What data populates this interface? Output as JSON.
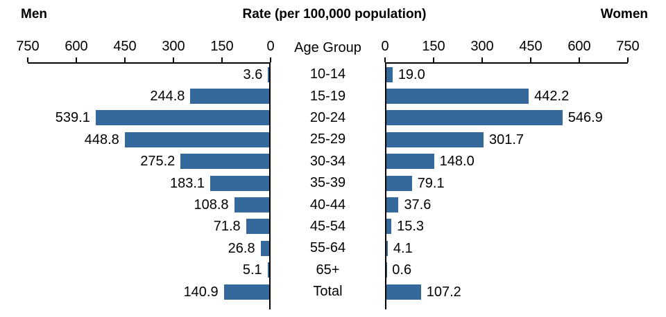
{
  "header": {
    "left": "Men",
    "title": "Rate (per 100,000 population)",
    "right": "Women"
  },
  "center_label": "Age Group",
  "colors": {
    "bar": "#35699C",
    "axis": "#000000",
    "text": "#000000"
  },
  "chart_data": {
    "type": "bar",
    "layout": "horizontal-bilateral-pyramid",
    "title": "Rate (per 100,000 population)",
    "center_axis_label": "Age Group",
    "axis_max": 750,
    "ticks": [
      0,
      150,
      300,
      450,
      600,
      750
    ],
    "grid": false,
    "value_labels": true,
    "value_label_decimals": 1,
    "categories": [
      "10-14",
      "15-19",
      "20-24",
      "25-29",
      "30-34",
      "35-39",
      "40-44",
      "45-54",
      "55-64",
      "65+",
      "Total"
    ],
    "series": [
      {
        "name": "Men",
        "side": "left",
        "values": [
          3.6,
          244.8,
          539.1,
          448.8,
          275.2,
          183.1,
          108.8,
          71.8,
          26.8,
          5.1,
          140.9
        ]
      },
      {
        "name": "Women",
        "side": "right",
        "values": [
          19.0,
          442.2,
          546.9,
          301.7,
          148.0,
          79.1,
          37.6,
          15.3,
          4.1,
          0.6,
          107.2
        ]
      }
    ]
  }
}
